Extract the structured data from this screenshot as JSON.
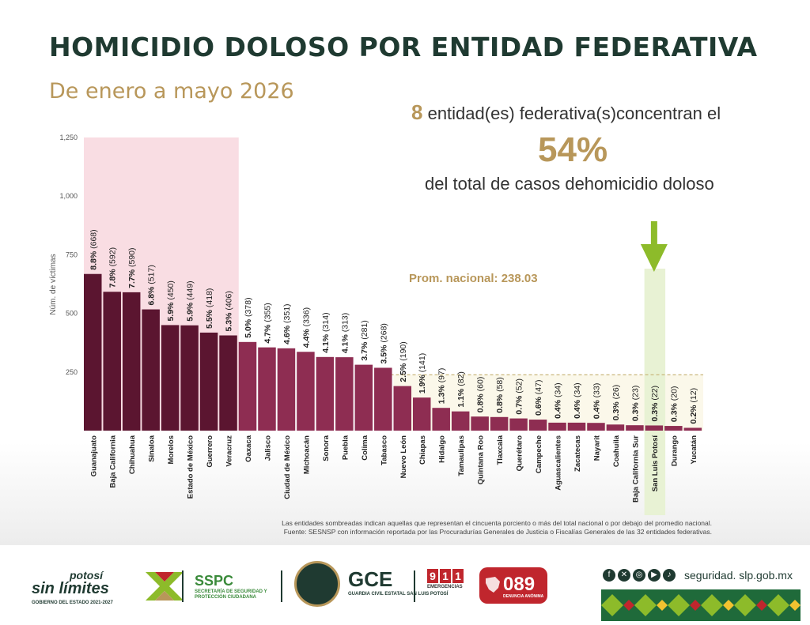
{
  "title": "HOMICIDIO DOLOSO POR ENTIDAD FEDERATIVA",
  "subtitle": "De enero a mayo 2026",
  "stat": {
    "count": "8",
    "line1": " entidad(es) federativa(s)concentran el",
    "percent": "54%",
    "line3": "del total de casos dehomicidio doloso"
  },
  "chart_data": {
    "type": "bar",
    "ylabel": "Núm. de víctimas",
    "ylim": [
      0,
      1250
    ],
    "yticks": [
      250,
      500,
      750,
      1000,
      1250
    ],
    "ytick_labels": [
      "250",
      "500",
      "750",
      "1,000",
      "1,250"
    ],
    "average": {
      "label": "Prom. nacional: 238.03",
      "value": 238.03
    },
    "categories": [
      "Guanajuato",
      "Baja California",
      "Chihuahua",
      "Sinaloa",
      "Morelos",
      "Estado de México",
      "Guerrero",
      "Veracruz",
      "Oaxaca",
      "Jalisco",
      "Ciudad de México",
      "Michoacán",
      "Sonora",
      "Puebla",
      "Colima",
      "Tabasco",
      "Nuevo León",
      "Chiapas",
      "Hidalgo",
      "Tamaulipas",
      "Quintana Roo",
      "Tlaxcala",
      "Querétaro",
      "Campeche",
      "Aguascalientes",
      "Zacatecas",
      "Nayarit",
      "Coahuila",
      "Baja California Sur",
      "San Luis Potosí",
      "Durango",
      "Yucatán"
    ],
    "values": [
      668,
      592,
      590,
      517,
      450,
      449,
      418,
      406,
      378,
      355,
      351,
      336,
      314,
      313,
      281,
      268,
      190,
      141,
      97,
      82,
      60,
      58,
      52,
      47,
      34,
      34,
      33,
      26,
      23,
      22,
      20,
      12
    ],
    "percent_labels": [
      "8.8%",
      "7.8%",
      "7.7%",
      "6.8%",
      "5.9%",
      "5.9%",
      "5.5%",
      "5.3%",
      "5.0%",
      "4.7%",
      "4.6%",
      "4.4%",
      "4.1%",
      "4.1%",
      "3.7%",
      "3.5%",
      "2.5%",
      "1.9%",
      "1.3%",
      "1.1%",
      "0.8%",
      "0.8%",
      "0.7%",
      "0.6%",
      "0.4%",
      "0.4%",
      "0.4%",
      "0.3%",
      "0.3%",
      "0.3%",
      "0.3%",
      "0.2%"
    ],
    "count_labels": [
      "(668)",
      "(592)",
      "(590)",
      "(517)",
      "(450)",
      "(449)",
      "(418)",
      "(406)",
      "(378)",
      "(355)",
      "(351)",
      "(336)",
      "(314)",
      "(313)",
      "(281)",
      "(268)",
      "(190)",
      "(141)",
      "(97)",
      "(82)",
      "(60)",
      "(58)",
      "(52)",
      "(47)",
      "(34)",
      "(34)",
      "(33)",
      "(26)",
      "(23)",
      "(22)",
      "(20)",
      "(12)"
    ],
    "concentrated_count": 8,
    "highlighted": "San Luis Potosí",
    "colors": {
      "concentrated_bar": "#5b1530",
      "other_bar": "#8e2d52",
      "concentrated_band": "#f9dde3",
      "highlight_band": "#e8f2d4",
      "below_average_band": "#fbf8ea",
      "average_line": "#c9b77c",
      "arrow": "#8dbb2a",
      "gold": "#b8975a",
      "dark_green": "#1f3a31"
    }
  },
  "footnote": {
    "line1": "Las entidades sombreadas indican aquellas que representan el cincuenta porciento o más del total nacional o por debajo del promedio nacional.",
    "line2": "Fuente: SESNSP con información reportada por las Procuradurías Generales de Justicia o Fiscalías Generales de las 32 entidades federativas."
  },
  "footer": {
    "potosi_top": "potosí",
    "potosi_main": "sin límites",
    "potosi_sub": "GOBIERNO DEL ESTADO 2021-2027",
    "sspc_name": "SSPC",
    "sspc_sub": "SECRETARÍA DE SEGURIDAD Y PROTECCIÓN CIUDADANA",
    "gce_name": "GCE",
    "gce_sub": "GUARDIA CIVIL ESTATAL SAN LUIS POTOSÍ",
    "e911_d1": "9",
    "e911_d2": "1",
    "e911_d3": "1",
    "e911_sub": "EMERGENCIAS",
    "e089_num": "089",
    "e089_sub": "DENUNCIA ANÓNIMA",
    "url": "seguridad. slp.gob.mx",
    "social_icons": [
      "facebook-icon",
      "x-icon",
      "instagram-icon",
      "youtube-icon",
      "tiktok-icon"
    ]
  }
}
